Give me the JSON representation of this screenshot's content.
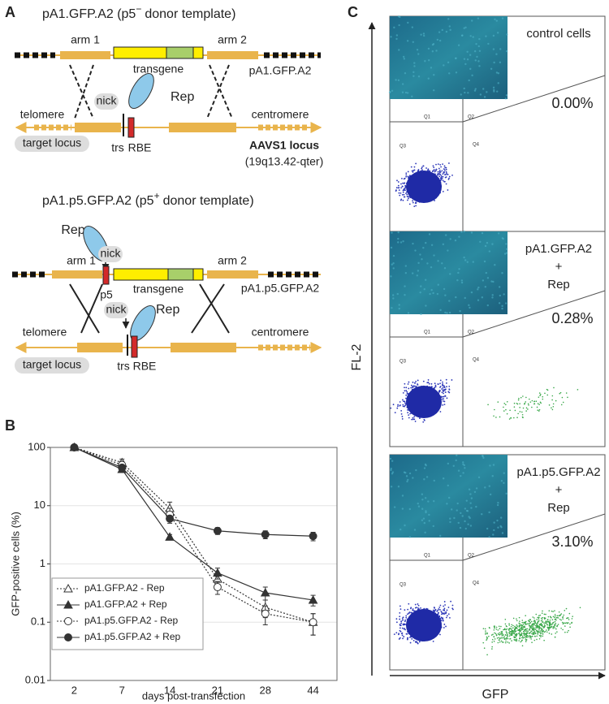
{
  "panel_a": {
    "label": "A",
    "top": {
      "title": "pA1.GFP.A2 (p5",
      "title_superscript": "−",
      "title_suffix": "donor template)",
      "arm1": "arm 1",
      "transgene": "transgene",
      "arm2": "arm 2",
      "plasmid": "pA1.GFP.A2",
      "nick": "nick",
      "rep": "Rep",
      "telomere": "telomere",
      "centromere": "centromere",
      "target_locus": "target locus",
      "trs": "trs",
      "rbe": "RBE",
      "locus_name": "AAVS1 locus",
      "locus_position": "(19q13.42-qter)"
    },
    "bottom": {
      "title": "pA1.p5.GFP.A2 (p5",
      "title_superscript": "+",
      "title_suffix": "donor template)",
      "rep_donor": "Rep",
      "nick_donor": "nick",
      "arm1": "arm 1",
      "p5": "p5",
      "transgene": "transgene",
      "arm2": "arm 2",
      "plasmid": "pA1.p5.GFP.A2",
      "nick": "nick",
      "rep": "Rep",
      "telomere": "telomere",
      "centromere": "centromere",
      "target_locus": "target locus",
      "trs": "trs",
      "rbe": "RBE"
    }
  },
  "chart_data": {
    "type": "line",
    "panel_label": "B",
    "x_label": "days post-transfection",
    "y_label": "GFP-positive cells (%)",
    "categories": [
      2,
      7,
      14,
      21,
      28,
      44
    ],
    "log_y": true,
    "ylim": [
      0.01,
      100
    ],
    "yticks": [
      0.01,
      0.1,
      1,
      10,
      100
    ],
    "grid": true,
    "legend": "bottom-left",
    "series": [
      {
        "name": "pA1.GFP.A2 - Rep",
        "color": "#333333",
        "dashed": true,
        "marker": "triangle",
        "filled": false,
        "values": [
          100,
          55,
          9,
          0.55,
          0.18,
          0.1
        ],
        "errors": [
          3,
          8,
          2.5,
          0.15,
          0.06,
          0.04
        ]
      },
      {
        "name": "pA1.GFP.A2 + Rep",
        "color": "#333333",
        "dashed": false,
        "marker": "triangle",
        "filled": true,
        "values": [
          100,
          42,
          2.9,
          0.7,
          0.32,
          0.24
        ],
        "errors": [
          3,
          5,
          0.3,
          0.15,
          0.08,
          0.05
        ]
      },
      {
        "name": "pA1.p5.GFP.A2 - Rep",
        "color": "#333333",
        "dashed": true,
        "marker": "circle",
        "filled": false,
        "values": [
          100,
          50,
          7,
          0.4,
          0.14,
          0.1
        ],
        "errors": [
          3,
          8,
          2,
          0.1,
          0.05,
          0.04
        ]
      },
      {
        "name": "pA1.p5.GFP.A2 + Rep",
        "color": "#333333",
        "dashed": false,
        "marker": "circle",
        "filled": true,
        "values": [
          100,
          45,
          6,
          3.7,
          3.2,
          3.0
        ],
        "errors": [
          3,
          4,
          0.6,
          0.5,
          0.5,
          0.5
        ]
      }
    ]
  },
  "panel_c": {
    "label": "C",
    "y_axis": "FL-2",
    "x_axis": "GFP",
    "plots": [
      {
        "lines": [
          "control cells"
        ],
        "percent": "0.00%",
        "quadrants": [
          "Q1",
          "Q2",
          "Q3",
          "Q4"
        ]
      },
      {
        "lines": [
          "pA1.GFP.A2",
          "+",
          "Rep"
        ],
        "percent": "0.28%",
        "quadrants": [
          "Q1",
          "Q2",
          "Q3",
          "Q4"
        ]
      },
      {
        "lines": [
          "pA1.p5.GFP.A2",
          "+",
          "Rep"
        ],
        "percent": "3.10%",
        "quadrants": [
          "Q1",
          "Q2",
          "Q3",
          "Q4"
        ]
      }
    ]
  }
}
